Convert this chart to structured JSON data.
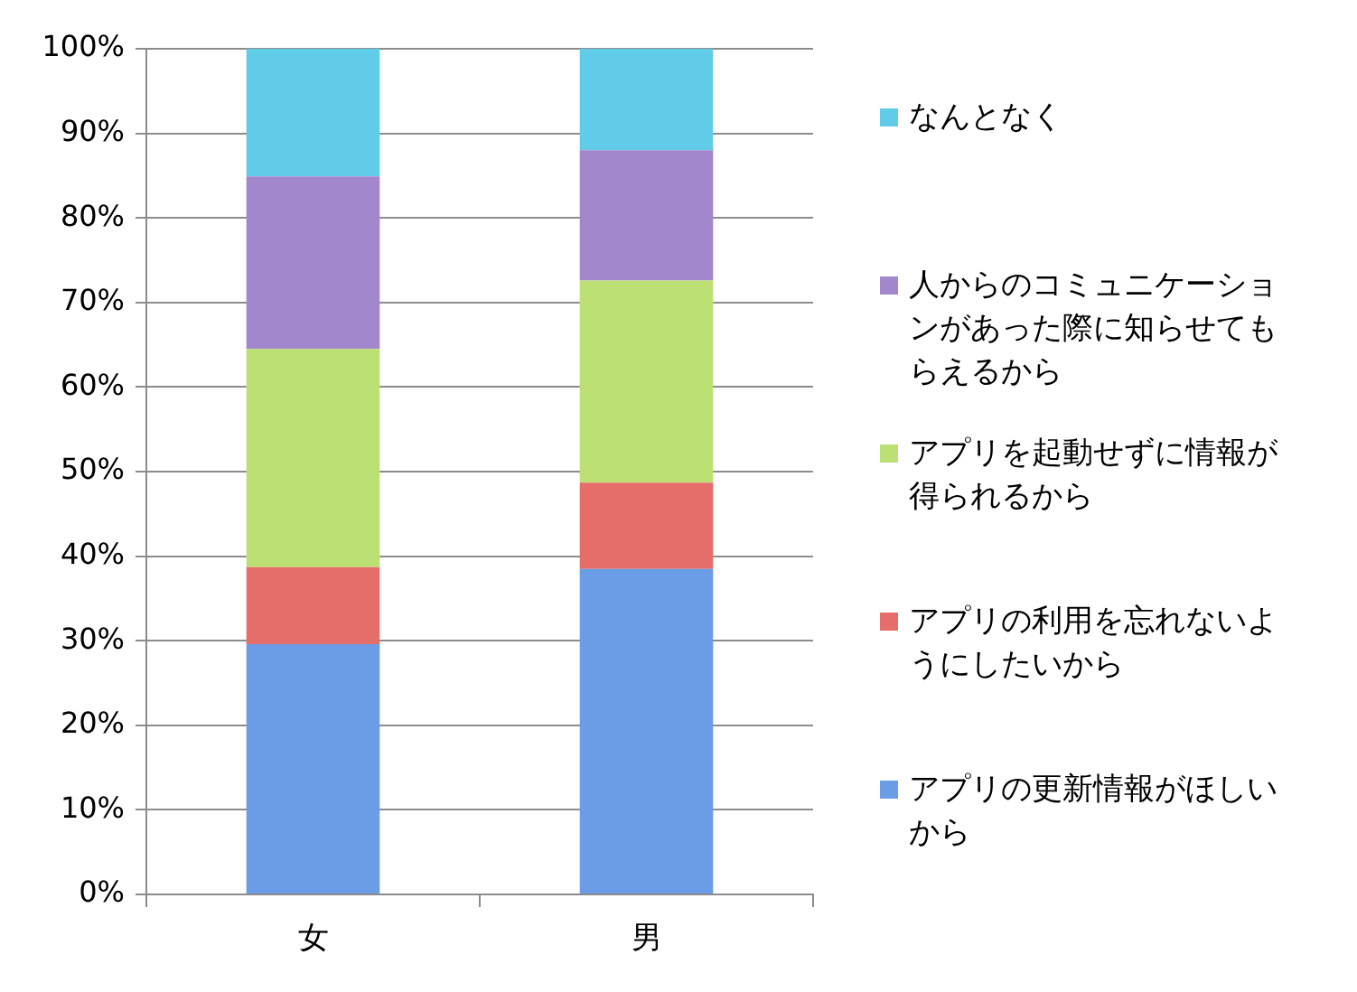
{
  "chart_data": {
    "type": "bar",
    "stacked": true,
    "categories": [
      "女",
      "男"
    ],
    "ylim": [
      0,
      100
    ],
    "yticks": [
      {
        "value": 0,
        "label": "0%"
      },
      {
        "value": 10,
        "label": "10%"
      },
      {
        "value": 20,
        "label": "20%"
      },
      {
        "value": 30,
        "label": "30%"
      },
      {
        "value": 40,
        "label": "40%"
      },
      {
        "value": 50,
        "label": "50%"
      },
      {
        "value": 60,
        "label": "60%"
      },
      {
        "value": 70,
        "label": "70%"
      },
      {
        "value": 80,
        "label": "80%"
      },
      {
        "value": 90,
        "label": "90%"
      },
      {
        "value": 100,
        "label": "100%"
      }
    ],
    "grid": "y",
    "legend": "right",
    "series": [
      {
        "name": "アプリの更新情報がほしいから",
        "color": "#6a9de6",
        "values": [
          29.6,
          38.5
        ]
      },
      {
        "name": "アプリの利用を忘れないようにしたいから",
        "color": "#e66e6a",
        "values": [
          9.1,
          10.2
        ]
      },
      {
        "name": "アプリを起動せずに情報が得られるから",
        "color": "#bde075",
        "values": [
          25.8,
          23.9
        ]
      },
      {
        "name": "人からのコミュニケーションがあった際に知らせてもらえるから",
        "color": "#a387cd",
        "values": [
          20.4,
          15.4
        ]
      },
      {
        "name": "なんとなく",
        "color": "#60cce8",
        "values": [
          15.1,
          12.0
        ]
      }
    ]
  }
}
